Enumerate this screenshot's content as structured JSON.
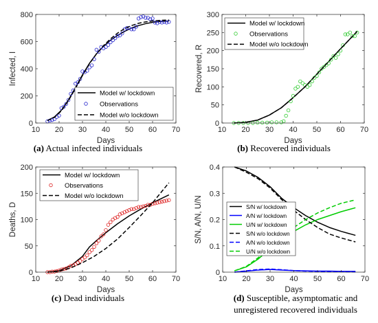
{
  "chart_data": [
    {
      "id": "a",
      "type": "line",
      "xlabel": "Days",
      "ylabel": "Infected, I",
      "xlim": [
        10,
        70
      ],
      "ylim": [
        0,
        800
      ],
      "xticks": [
        10,
        20,
        30,
        40,
        50,
        60,
        70
      ],
      "yticks": [
        0,
        200,
        400,
        600,
        800
      ],
      "legend_position": "bottom-right",
      "caption_tag": "(a)",
      "caption": "Actual infected individuals",
      "series": [
        {
          "name": "Model w/ lockdown",
          "style": "solid",
          "color": "#000000",
          "x": [
            15,
            18,
            21,
            24,
            27,
            30,
            33,
            36,
            39,
            42,
            45,
            48,
            51,
            54,
            57,
            60,
            63,
            67
          ],
          "y": [
            18,
            45,
            95,
            170,
            260,
            355,
            440,
            510,
            565,
            610,
            645,
            675,
            700,
            718,
            732,
            742,
            748,
            752
          ]
        },
        {
          "name": "Observations",
          "style": "markers",
          "color": "#2222cc",
          "x": [
            15,
            16,
            17,
            18,
            19,
            20,
            21,
            22,
            23,
            24,
            25,
            26,
            27,
            28,
            29,
            30,
            31,
            32,
            33,
            34,
            35,
            36,
            37,
            38,
            39,
            40,
            41,
            42,
            43,
            44,
            45,
            46,
            47,
            48,
            49,
            50,
            51,
            52,
            53,
            54,
            55,
            56,
            57,
            58,
            59,
            60,
            61,
            62,
            63,
            64,
            65,
            66,
            67
          ],
          "y": [
            12,
            18,
            22,
            28,
            45,
            55,
            110,
            120,
            140,
            170,
            215,
            240,
            290,
            300,
            325,
            380,
            375,
            385,
            410,
            425,
            470,
            540,
            525,
            560,
            550,
            560,
            575,
            595,
            610,
            625,
            640,
            645,
            660,
            690,
            700,
            700,
            690,
            690,
            710,
            770,
            780,
            785,
            775,
            775,
            765,
            770,
            740,
            735,
            745,
            740,
            745,
            740,
            745
          ]
        },
        {
          "name": "Model w/o lockdown",
          "style": "dashed",
          "color": "#000000",
          "x": [
            15,
            18,
            21,
            24,
            27,
            30,
            33,
            36,
            39,
            42,
            45,
            48,
            51,
            54,
            57,
            60,
            63,
            67
          ],
          "y": [
            18,
            42,
            90,
            165,
            255,
            350,
            437,
            510,
            570,
            620,
            662,
            695,
            718,
            735,
            745,
            752,
            756,
            759
          ]
        }
      ]
    },
    {
      "id": "b",
      "type": "line",
      "xlabel": "Days",
      "ylabel": "Recovered, R",
      "xlim": [
        10,
        70
      ],
      "ylim": [
        0,
        300
      ],
      "xticks": [
        10,
        20,
        30,
        40,
        50,
        60,
        70
      ],
      "yticks": [
        0,
        50,
        100,
        150,
        200,
        250,
        300
      ],
      "legend_position": "top-left",
      "caption_tag": "(b)",
      "caption": "Recovered individuals",
      "series": [
        {
          "name": "Model w/ lockdown",
          "style": "solid",
          "color": "#000000",
          "x": [
            15,
            20,
            25,
            30,
            35,
            40,
            45,
            50,
            55,
            60,
            67
          ],
          "y": [
            0,
            2,
            8,
            22,
            42,
            70,
            100,
            135,
            170,
            205,
            253
          ]
        },
        {
          "name": "Observations",
          "style": "markers",
          "color": "#33cc33",
          "x": [
            15,
            17,
            19,
            21,
            23,
            25,
            27,
            29,
            31,
            33,
            35,
            36,
            37,
            38,
            39,
            40,
            41,
            42,
            43,
            44,
            45,
            46,
            47,
            48,
            49,
            50,
            51,
            52,
            53,
            54,
            55,
            56,
            57,
            58,
            59,
            60,
            61,
            62,
            63,
            64,
            65,
            66,
            67
          ],
          "y": [
            0,
            0,
            0,
            0,
            0,
            1,
            1,
            1,
            2,
            2,
            2,
            5,
            20,
            35,
            60,
            75,
            95,
            100,
            115,
            110,
            105,
            100,
            105,
            115,
            125,
            130,
            140,
            150,
            155,
            160,
            165,
            175,
            185,
            180,
            190,
            200,
            215,
            245,
            245,
            250,
            240,
            240,
            250
          ]
        },
        {
          "name": "Model w/o lockdown",
          "style": "dashed",
          "color": "#000000",
          "x": [
            15,
            20,
            25,
            30,
            35,
            40,
            45,
            50,
            55,
            60,
            67
          ],
          "y": [
            0,
            2,
            8,
            22,
            42,
            70,
            100,
            135,
            170,
            205,
            253
          ]
        }
      ]
    },
    {
      "id": "c",
      "type": "line",
      "xlabel": "Days",
      "ylabel": "Deaths, D",
      "xlim": [
        10,
        70
      ],
      "ylim": [
        0,
        200
      ],
      "xticks": [
        10,
        20,
        30,
        40,
        50,
        60,
        70
      ],
      "yticks": [
        0,
        50,
        100,
        150,
        200
      ],
      "legend_position": "top-left",
      "caption_tag": "(c)",
      "caption": "Dead individuals",
      "series": [
        {
          "name": "Model w/ lockdown",
          "style": "solid",
          "color": "#000000",
          "x": [
            15,
            20,
            25,
            30,
            33,
            36,
            40,
            45,
            50,
            55,
            60,
            67
          ],
          "y": [
            0,
            3,
            12,
            30,
            48,
            60,
            75,
            92,
            107,
            120,
            132,
            147
          ]
        },
        {
          "name": "Observations",
          "style": "markers",
          "color": "#dd2222",
          "x": [
            15,
            16,
            17,
            18,
            19,
            20,
            21,
            22,
            23,
            24,
            25,
            26,
            27,
            28,
            29,
            30,
            31,
            32,
            33,
            34,
            35,
            36,
            37,
            38,
            39,
            40,
            41,
            42,
            43,
            44,
            45,
            46,
            47,
            48,
            49,
            50,
            51,
            52,
            53,
            54,
            55,
            56,
            57,
            58,
            59,
            60,
            61,
            62,
            63,
            64,
            65,
            66,
            67
          ],
          "y": [
            0,
            0,
            1,
            1,
            2,
            3,
            5,
            6,
            7,
            9,
            12,
            13,
            15,
            18,
            21,
            25,
            28,
            32,
            38,
            42,
            48,
            55,
            60,
            68,
            72,
            80,
            90,
            95,
            100,
            103,
            105,
            110,
            112,
            114,
            116,
            118,
            120,
            120,
            122,
            124,
            124,
            125,
            126,
            128,
            128,
            130,
            131,
            132,
            133,
            134,
            135,
            136,
            137
          ]
        },
        {
          "name": "Model w/o lockdown",
          "style": "dashed",
          "color": "#000000",
          "x": [
            15,
            20,
            25,
            30,
            35,
            40,
            45,
            50,
            55,
            60,
            67
          ],
          "y": [
            0,
            2,
            8,
            18,
            30,
            45,
            63,
            85,
            108,
            132,
            170
          ]
        }
      ]
    },
    {
      "id": "d",
      "type": "line",
      "xlabel": "Days",
      "ylabel": "S/N, A/N, U/N",
      "xlim": [
        10,
        70
      ],
      "ylim": [
        0,
        0.4
      ],
      "xticks": [
        10,
        20,
        30,
        40,
        50,
        60,
        70
      ],
      "yticks": [
        0,
        0.1,
        0.2,
        0.3,
        0.4
      ],
      "ytick_labels": [
        "0",
        "0.1",
        "0.2",
        "0.3",
        "0.4"
      ],
      "legend_position": "center-left",
      "caption_tag": "(d)",
      "caption": "Susceptible, asymptomatic and",
      "caption_line2": "unregistered recovered individuals",
      "series": [
        {
          "name": "S/N w/ lockdown",
          "style": "solid",
          "color": "#000000",
          "x": [
            15,
            20,
            25,
            30,
            35,
            40,
            45,
            50,
            55,
            60,
            66
          ],
          "y": [
            0.4,
            0.385,
            0.36,
            0.325,
            0.28,
            0.245,
            0.215,
            0.19,
            0.17,
            0.155,
            0.14
          ]
        },
        {
          "name": "A/N w/ lockdown",
          "style": "solid",
          "color": "#0000ff",
          "x": [
            15,
            20,
            25,
            30,
            35,
            40,
            45,
            50,
            55,
            60,
            66
          ],
          "y": [
            0.0,
            0.004,
            0.008,
            0.01,
            0.008,
            0.006,
            0.005,
            0.004,
            0.004,
            0.003,
            0.003
          ]
        },
        {
          "name": "U/N w/ lockdown",
          "style": "solid",
          "color": "#00cc00",
          "x": [
            15,
            20,
            25,
            30,
            35,
            40,
            45,
            50,
            55,
            60,
            66
          ],
          "y": [
            0.005,
            0.02,
            0.05,
            0.09,
            0.125,
            0.155,
            0.18,
            0.2,
            0.215,
            0.23,
            0.245
          ]
        },
        {
          "name": "S/N w/o lockdown",
          "style": "dashed",
          "color": "#000000",
          "x": [
            15,
            20,
            25,
            30,
            35,
            40,
            45,
            50,
            55,
            60,
            66
          ],
          "y": [
            0.4,
            0.38,
            0.355,
            0.32,
            0.275,
            0.235,
            0.2,
            0.17,
            0.145,
            0.13,
            0.115
          ]
        },
        {
          "name": "A/N w/o lockdown",
          "style": "dashed",
          "color": "#0000ff",
          "x": [
            15,
            20,
            25,
            30,
            35,
            40,
            45,
            50,
            55,
            60,
            66
          ],
          "y": [
            0.0,
            0.005,
            0.01,
            0.012,
            0.009,
            0.006,
            0.004,
            0.003,
            0.002,
            0.002,
            0.001
          ]
        },
        {
          "name": "U/N w/o lockdown",
          "style": "dashed",
          "color": "#00cc00",
          "x": [
            15,
            20,
            25,
            30,
            35,
            40,
            45,
            50,
            55,
            60,
            66
          ],
          "y": [
            0.005,
            0.022,
            0.055,
            0.095,
            0.135,
            0.17,
            0.2,
            0.225,
            0.245,
            0.262,
            0.275
          ]
        }
      ]
    }
  ]
}
